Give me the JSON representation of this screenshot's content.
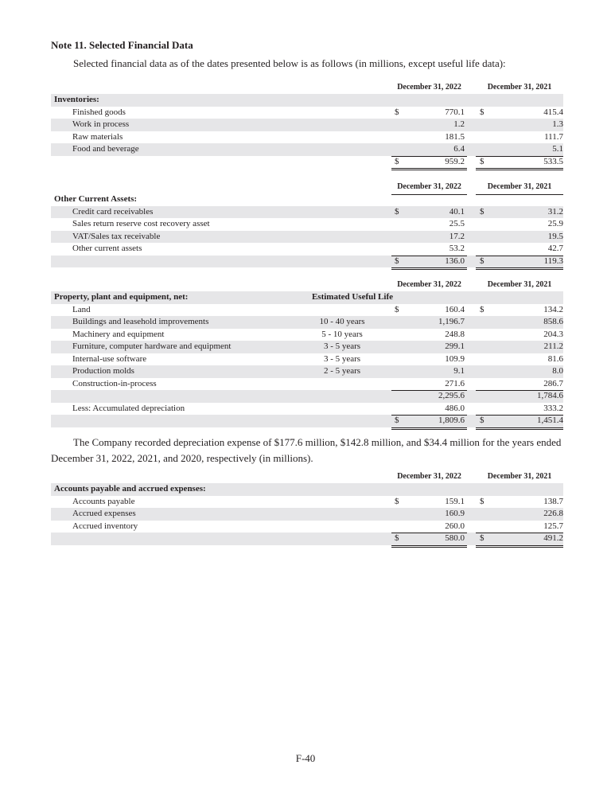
{
  "title": "Note 11. Selected Financial Data",
  "intro": "Selected financial data as of the dates presented below is as follows (in millions, except useful life data):",
  "tables": [
    {
      "top": 101,
      "col1": "December 31, 2022",
      "col2": "December 31, 2021",
      "rows": [
        {
          "label": "Inventories:",
          "bold": true
        },
        {
          "label": "Finished goods",
          "d1": "$",
          "v1": "770.1",
          "d2": "$",
          "v2": "415.4"
        },
        {
          "label": "Work in process",
          "v1": "1.2",
          "v2": "1.3"
        },
        {
          "label": "Raw materials",
          "v1": "181.5",
          "v2": "111.7"
        },
        {
          "label": "Food and beverage",
          "v1": "6.4",
          "v2": "5.1"
        },
        {
          "label": "",
          "d1": "$",
          "v1": "959.2",
          "d2": "$",
          "v2": "533.5",
          "total": true
        }
      ]
    },
    {
      "top": 226,
      "col1": "December 31, 2022",
      "col2": "December 31, 2021",
      "shadeStart": 1,
      "rows": [
        {
          "label": "Other Current Assets:",
          "bold": true
        },
        {
          "label": "Credit card receivables",
          "d1": "$",
          "v1": "40.1",
          "d2": "$",
          "v2": "31.2"
        },
        {
          "label": "Sales return reserve cost recovery asset",
          "v1": "25.5",
          "v2": "25.9"
        },
        {
          "label": "VAT/Sales tax receivable",
          "v1": "17.2",
          "v2": "19.5"
        },
        {
          "label": "Other current assets",
          "v1": "53.2",
          "v2": "42.7"
        },
        {
          "label": "",
          "d1": "$",
          "v1": "136.0",
          "d2": "$",
          "v2": "119.3",
          "total": true
        }
      ]
    },
    {
      "top": 349,
      "col1": "December 31, 2022",
      "col2": "December 31, 2021",
      "rows": [
        {
          "label": "Property, plant and equipment, net:",
          "bold": true,
          "life": "Estimated Useful Life"
        },
        {
          "label": "Land",
          "d1": "$",
          "v1": "160.4",
          "d2": "$",
          "v2": "134.2"
        },
        {
          "label": "Buildings and leasehold improvements",
          "life": "10 - 40 years",
          "v1": "1,196.7",
          "v2": "858.6"
        },
        {
          "label": "Machinery and equipment",
          "life": "5 - 10 years",
          "v1": "248.8",
          "v2": "204.3"
        },
        {
          "label": "Furniture, computer hardware and equipment",
          "life": "3 - 5 years",
          "v1": "299.1",
          "v2": "211.2"
        },
        {
          "label": "Internal-use software",
          "life": "3 - 5 years",
          "v1": "109.9",
          "v2": "81.6"
        },
        {
          "label": "Production molds",
          "life": "2 - 5 years",
          "v1": "9.1",
          "v2": "8.0"
        },
        {
          "label": "Construction-in-process",
          "v1": "271.6",
          "v2": "286.7"
        },
        {
          "label": "",
          "v1": "2,295.6",
          "v2": "1,784.6",
          "subtotal": true
        },
        {
          "label": "Less: Accumulated depreciation",
          "v1": "486.0",
          "v2": "333.2"
        },
        {
          "label": "",
          "d1": "$",
          "v1": "1,809.6",
          "d2": "$",
          "v2": "1,451.4",
          "total": true
        }
      ]
    },
    {
      "top": 590,
      "col1": "December 31, 2022",
      "col2": "December 31, 2021",
      "rows": [
        {
          "label": "Accounts payable and accrued expenses:",
          "bold": true
        },
        {
          "label": "Accounts payable",
          "d1": "$",
          "v1": "159.1",
          "d2": "$",
          "v2": "138.7"
        },
        {
          "label": "Accrued expenses",
          "v1": "160.9",
          "v2": "226.8"
        },
        {
          "label": "Accrued inventory",
          "v1": "260.0",
          "v2": "125.7"
        },
        {
          "label": "",
          "d1": "$",
          "v1": "580.0",
          "d2": "$",
          "v2": "491.2",
          "total": true
        }
      ]
    }
  ],
  "paragraph": "The Company recorded depreciation expense of $177.6 million, $142.8 million, and $34.4 million for the years ended December 31, 2022, 2021, and 2020, respectively (in millions).",
  "footer": "F-40",
  "colors": {
    "shade": "#e6e6e8",
    "text": "#231f20"
  }
}
